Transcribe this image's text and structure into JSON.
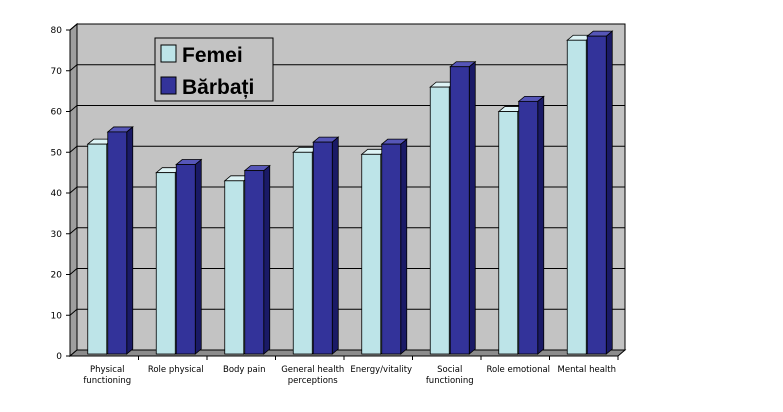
{
  "chart_data": {
    "type": "bar",
    "categories": [
      [
        "Physical",
        "functioning"
      ],
      [
        "Role physical"
      ],
      [
        "Body pain"
      ],
      [
        "General health",
        "perceptions"
      ],
      [
        "Energy/vitality"
      ],
      [
        "Social",
        "functioning"
      ],
      [
        "Role emotional"
      ],
      [
        "Mental health"
      ]
    ],
    "series": [
      {
        "name": "Femei",
        "values": [
          51.5,
          44.5,
          42.5,
          49.5,
          49,
          65.5,
          59.5,
          77
        ]
      },
      {
        "name": "Bărbați",
        "values": [
          54.5,
          46.5,
          45,
          52,
          51.5,
          70.5,
          62,
          78
        ]
      }
    ],
    "ylim": [
      0,
      80
    ],
    "yticks": [
      0,
      10,
      20,
      30,
      40,
      50,
      60,
      70,
      80
    ],
    "grid": true,
    "legend_position": "top-left",
    "style": "3d-clustered-columns"
  },
  "colors": {
    "femei_front": "#BDE4E8",
    "femei_side": "#8FB6BA",
    "femei_top": "#DDF3F5",
    "barbati_front": "#33339A",
    "barbati_side": "#1A1A66",
    "barbati_top": "#5656B8",
    "wall": "#C3C3C3",
    "floor": "#8C8C8C"
  }
}
